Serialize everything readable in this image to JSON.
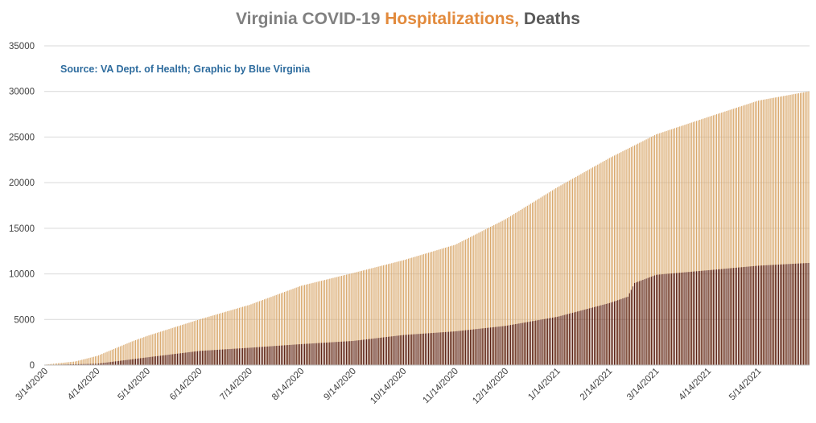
{
  "title": {
    "part1": "Virginia COVID-19 ",
    "part2": "Hospitalizations, ",
    "part3": "Deaths"
  },
  "source_note": "Source: VA Dept. of Health; Graphic by Blue Virginia",
  "colors": {
    "hospitalizations": "#D9A86C",
    "deaths": "#5A1F12",
    "title_grey": "#808080",
    "title_orange": "#E28A3C",
    "title_dark": "#5a5a5a",
    "source_blue": "#2E6C9E",
    "grid": "#d9d9d9"
  },
  "chart_data": {
    "type": "bar",
    "stacked": false,
    "ylim": [
      0,
      35000
    ],
    "yticks": [
      0,
      5000,
      10000,
      15000,
      20000,
      25000,
      30000,
      35000
    ],
    "grid": true,
    "legend": "none",
    "xtick_labels": [
      "3/14/2020",
      "4/14/2020",
      "5/14/2020",
      "6/14/2020",
      "7/14/2020",
      "8/14/2020",
      "9/14/2020",
      "10/14/2020",
      "11/14/2020",
      "12/14/2020",
      "1/14/2021",
      "2/14/2021",
      "3/14/2021",
      "4/14/2021",
      "5/14/2021"
    ],
    "x_start": "3/14/2020",
    "x_end": "6/13/2021",
    "series": [
      {
        "name": "Hospitalizations",
        "points": [
          [
            "3/14/2020",
            50
          ],
          [
            "4/1/2020",
            400
          ],
          [
            "4/14/2020",
            1000
          ],
          [
            "5/5/2020",
            2600
          ],
          [
            "5/14/2020",
            3200
          ],
          [
            "6/14/2020",
            5000
          ],
          [
            "7/14/2020",
            6600
          ],
          [
            "8/14/2020",
            8700
          ],
          [
            "9/14/2020",
            10100
          ],
          [
            "10/14/2020",
            11500
          ],
          [
            "11/14/2020",
            13200
          ],
          [
            "12/14/2020",
            16000
          ],
          [
            "1/14/2021",
            19500
          ],
          [
            "2/14/2021",
            22700
          ],
          [
            "3/14/2021",
            25300
          ],
          [
            "4/14/2021",
            27200
          ],
          [
            "5/14/2021",
            29000
          ],
          [
            "6/13/2021",
            30000
          ]
        ]
      },
      {
        "name": "Deaths",
        "points": [
          [
            "3/14/2020",
            20
          ],
          [
            "4/14/2020",
            150
          ],
          [
            "5/14/2020",
            850
          ],
          [
            "6/14/2020",
            1550
          ],
          [
            "7/14/2020",
            1900
          ],
          [
            "8/14/2020",
            2300
          ],
          [
            "9/14/2020",
            2650
          ],
          [
            "10/14/2020",
            3300
          ],
          [
            "11/14/2020",
            3700
          ],
          [
            "12/14/2020",
            4300
          ],
          [
            "1/14/2021",
            5300
          ],
          [
            "2/14/2021",
            6800
          ],
          [
            "2/25/2021",
            7500
          ],
          [
            "3/1/2021",
            9000
          ],
          [
            "3/14/2021",
            9900
          ],
          [
            "4/14/2021",
            10400
          ],
          [
            "5/14/2021",
            10900
          ],
          [
            "6/13/2021",
            11200
          ]
        ]
      }
    ]
  }
}
